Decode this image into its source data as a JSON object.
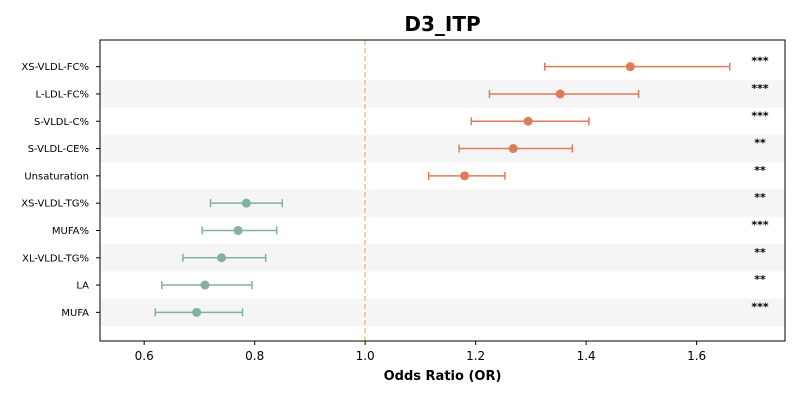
{
  "chart_data": {
    "type": "forest",
    "title": "D3_ITP",
    "xlabel": "Odds Ratio (OR)",
    "xlim": [
      0.52,
      1.76
    ],
    "xticks": [
      0.6,
      0.8,
      1.0,
      1.2,
      1.4,
      1.6
    ],
    "xtick_labels": [
      "0.6",
      "0.8",
      "1.0",
      "1.2",
      "1.4",
      "1.6"
    ],
    "reference_line": 1.0,
    "reference_color": "#f5c27a",
    "colors": {
      "positive": "#e07b5a",
      "negative": "#82b29a",
      "band": "#f5f5f5"
    },
    "grid": false,
    "items": [
      {
        "label": "XS-VLDL-FC%",
        "or": 1.48,
        "lo": 1.325,
        "hi": 1.66,
        "sig": "***"
      },
      {
        "label": "L-LDL-FC%",
        "or": 1.353,
        "lo": 1.225,
        "hi": 1.495,
        "sig": "***"
      },
      {
        "label": "S-VLDL-C%",
        "or": 1.295,
        "lo": 1.192,
        "hi": 1.405,
        "sig": "***"
      },
      {
        "label": "S-VLDL-CE%",
        "or": 1.268,
        "lo": 1.17,
        "hi": 1.375,
        "sig": "**"
      },
      {
        "label": "Unsaturation",
        "or": 1.18,
        "lo": 1.115,
        "hi": 1.253,
        "sig": "**"
      },
      {
        "label": "XS-VLDL-TG%",
        "or": 0.785,
        "lo": 0.72,
        "hi": 0.85,
        "sig": "**"
      },
      {
        "label": "MUFA%",
        "or": 0.77,
        "lo": 0.705,
        "hi": 0.84,
        "sig": "***"
      },
      {
        "label": "XL-VLDL-TG%",
        "or": 0.74,
        "lo": 0.67,
        "hi": 0.82,
        "sig": "**"
      },
      {
        "label": "LA",
        "or": 0.71,
        "lo": 0.632,
        "hi": 0.795,
        "sig": "**"
      },
      {
        "label": "MUFA",
        "or": 0.695,
        "lo": 0.62,
        "hi": 0.778,
        "sig": "***"
      }
    ]
  }
}
